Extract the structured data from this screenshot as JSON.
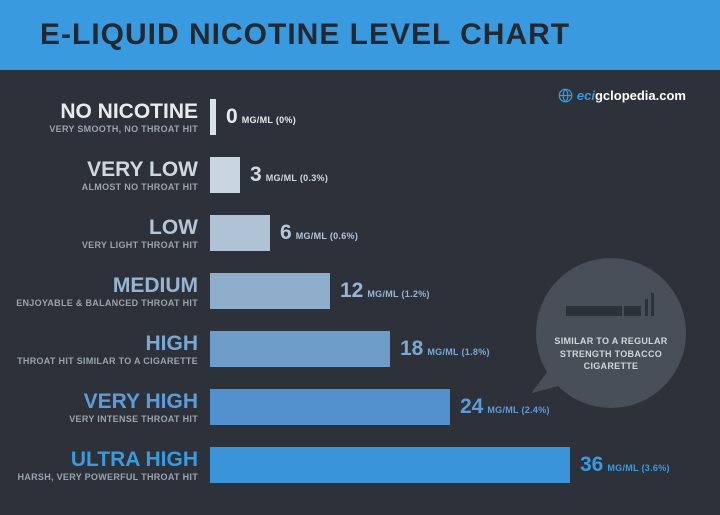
{
  "title": "E-LIQUID NICOTINE LEVEL CHART",
  "logo_prefix": "eci",
  "logo_suffix": "gclopedia.com",
  "background": "#2d323a",
  "header_bg": "#3a9ae0",
  "callout_bg": "#484f58",
  "unit_label": "MG/ML",
  "bar_unit_width": 10,
  "bar_min_width": 6,
  "callout": "SIMILAR TO A REGULAR STRENGTH TOBACCO CIGARETTE",
  "levels": [
    {
      "name": "NO NICOTINE",
      "desc": "VERY SMOOTH, NO THROAT HIT",
      "value": 0,
      "pct": "(0%)",
      "label_color": "#e7ebef",
      "bar_color": "#d9e2ea",
      "value_color": "#e7ebef"
    },
    {
      "name": "VERY LOW",
      "desc": "ALMOST NO THROAT HIT",
      "value": 3,
      "pct": "(0.3%)",
      "label_color": "#cfd8e0",
      "bar_color": "#c9d5df",
      "value_color": "#cfd8e0"
    },
    {
      "name": "LOW",
      "desc": "VERY LIGHT THROAT HIT",
      "value": 6,
      "pct": "(0.6%)",
      "label_color": "#b6c6d6",
      "bar_color": "#aec2d4",
      "value_color": "#b6c6d6"
    },
    {
      "name": "MEDIUM",
      "desc": "ENJOYABLE & BALANCED THROAT HIT",
      "value": 12,
      "pct": "(1.2%)",
      "label_color": "#97b5d2",
      "bar_color": "#8faecc",
      "value_color": "#97b5d2"
    },
    {
      "name": "HIGH",
      "desc": "THROAT HIT SIMILAR TO A CIGARETTE",
      "value": 18,
      "pct": "(1.8%)",
      "label_color": "#7aa8d4",
      "bar_color": "#6f9dc9",
      "value_color": "#7aa8d4"
    },
    {
      "name": "VERY HIGH",
      "desc": "VERY INTENSE THROAT HIT",
      "value": 24,
      "pct": "(2.4%)",
      "label_color": "#5d9cd8",
      "bar_color": "#5291ce",
      "value_color": "#5d9cd8"
    },
    {
      "name": "ULTRA HIGH",
      "desc": "HARSH, VERY POWERFUL THROAT HIT",
      "value": 36,
      "pct": "(3.6%)",
      "label_color": "#3a9ae0",
      "bar_color": "#3a94d9",
      "value_color": "#3a9ae0"
    }
  ]
}
